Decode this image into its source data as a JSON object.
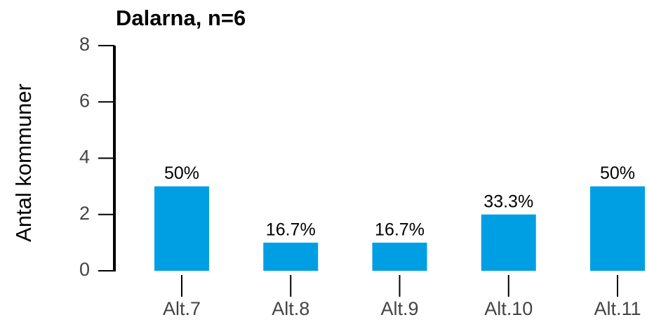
{
  "chart_data": {
    "type": "bar",
    "title": "Dalarna, n=6",
    "y_label": "Antal kommuner",
    "categories": [
      "Alt.7",
      "Alt.8",
      "Alt.9",
      "Alt.10",
      "Alt.11"
    ],
    "values": [
      3,
      1,
      1,
      2,
      3
    ],
    "value_labels": [
      "50%",
      "16.7%",
      "16.7%",
      "33.3%",
      "50%"
    ],
    "color": "#009fe3",
    "ylim": [
      0,
      8
    ],
    "yticks": [
      0,
      2,
      4,
      6,
      8
    ],
    "grid": false
  }
}
